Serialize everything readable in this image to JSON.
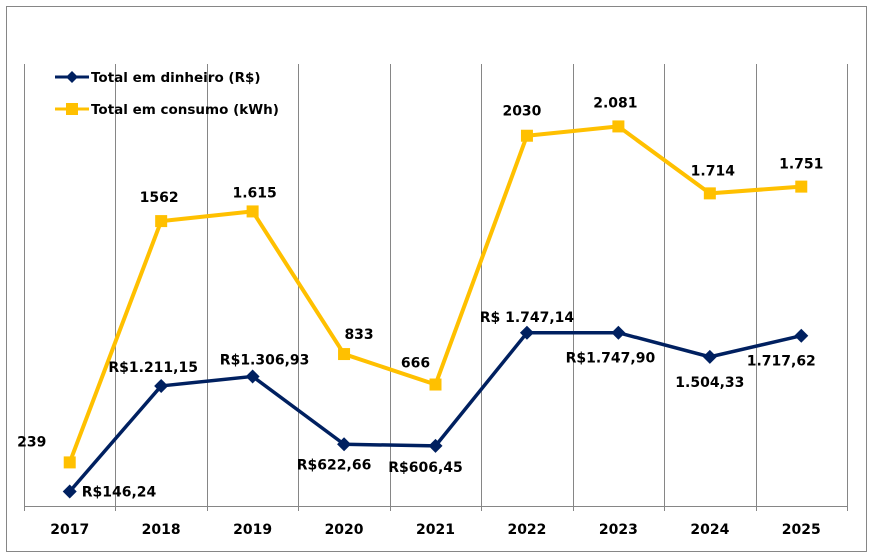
{
  "chart_data": {
    "type": "line",
    "title": "",
    "xlabel": "",
    "ylabel": "",
    "grid": "vertical",
    "legend_position": "top-left",
    "categories": [
      "2017",
      "2018",
      "2019",
      "2020",
      "2021",
      "2022",
      "2023",
      "2024",
      "2025"
    ],
    "series": [
      {
        "name": "Total em dinheiro (R$)",
        "color": "#002060",
        "marker": "diamond",
        "axis": "secondary",
        "ylim": [
          0,
          4600
        ],
        "values": [
          146.24,
          1211.15,
          1306.93,
          622.66,
          606.45,
          1747.14,
          1747.9,
          1504.33,
          1717.62
        ],
        "labels": [
          "R$146,24",
          "R$1.211,15",
          "R$1.306,93",
          "R$622,66",
          "R$606,45",
          "R$ 1.747,14",
          "R$1.747,90",
          "1.504,33",
          "1.717,62"
        ]
      },
      {
        "name": "Total em consumo (kWh)",
        "color": "#FFC000",
        "marker": "square",
        "axis": "primary",
        "ylim": [
          0,
          2500
        ],
        "values": [
          239,
          1562,
          1615,
          833,
          666,
          2030,
          2081,
          1714,
          1751
        ],
        "labels": [
          "239",
          "1562",
          "1.615",
          "833",
          "666",
          "2030",
          "2.081",
          "1.714",
          "1.751"
        ]
      }
    ]
  }
}
